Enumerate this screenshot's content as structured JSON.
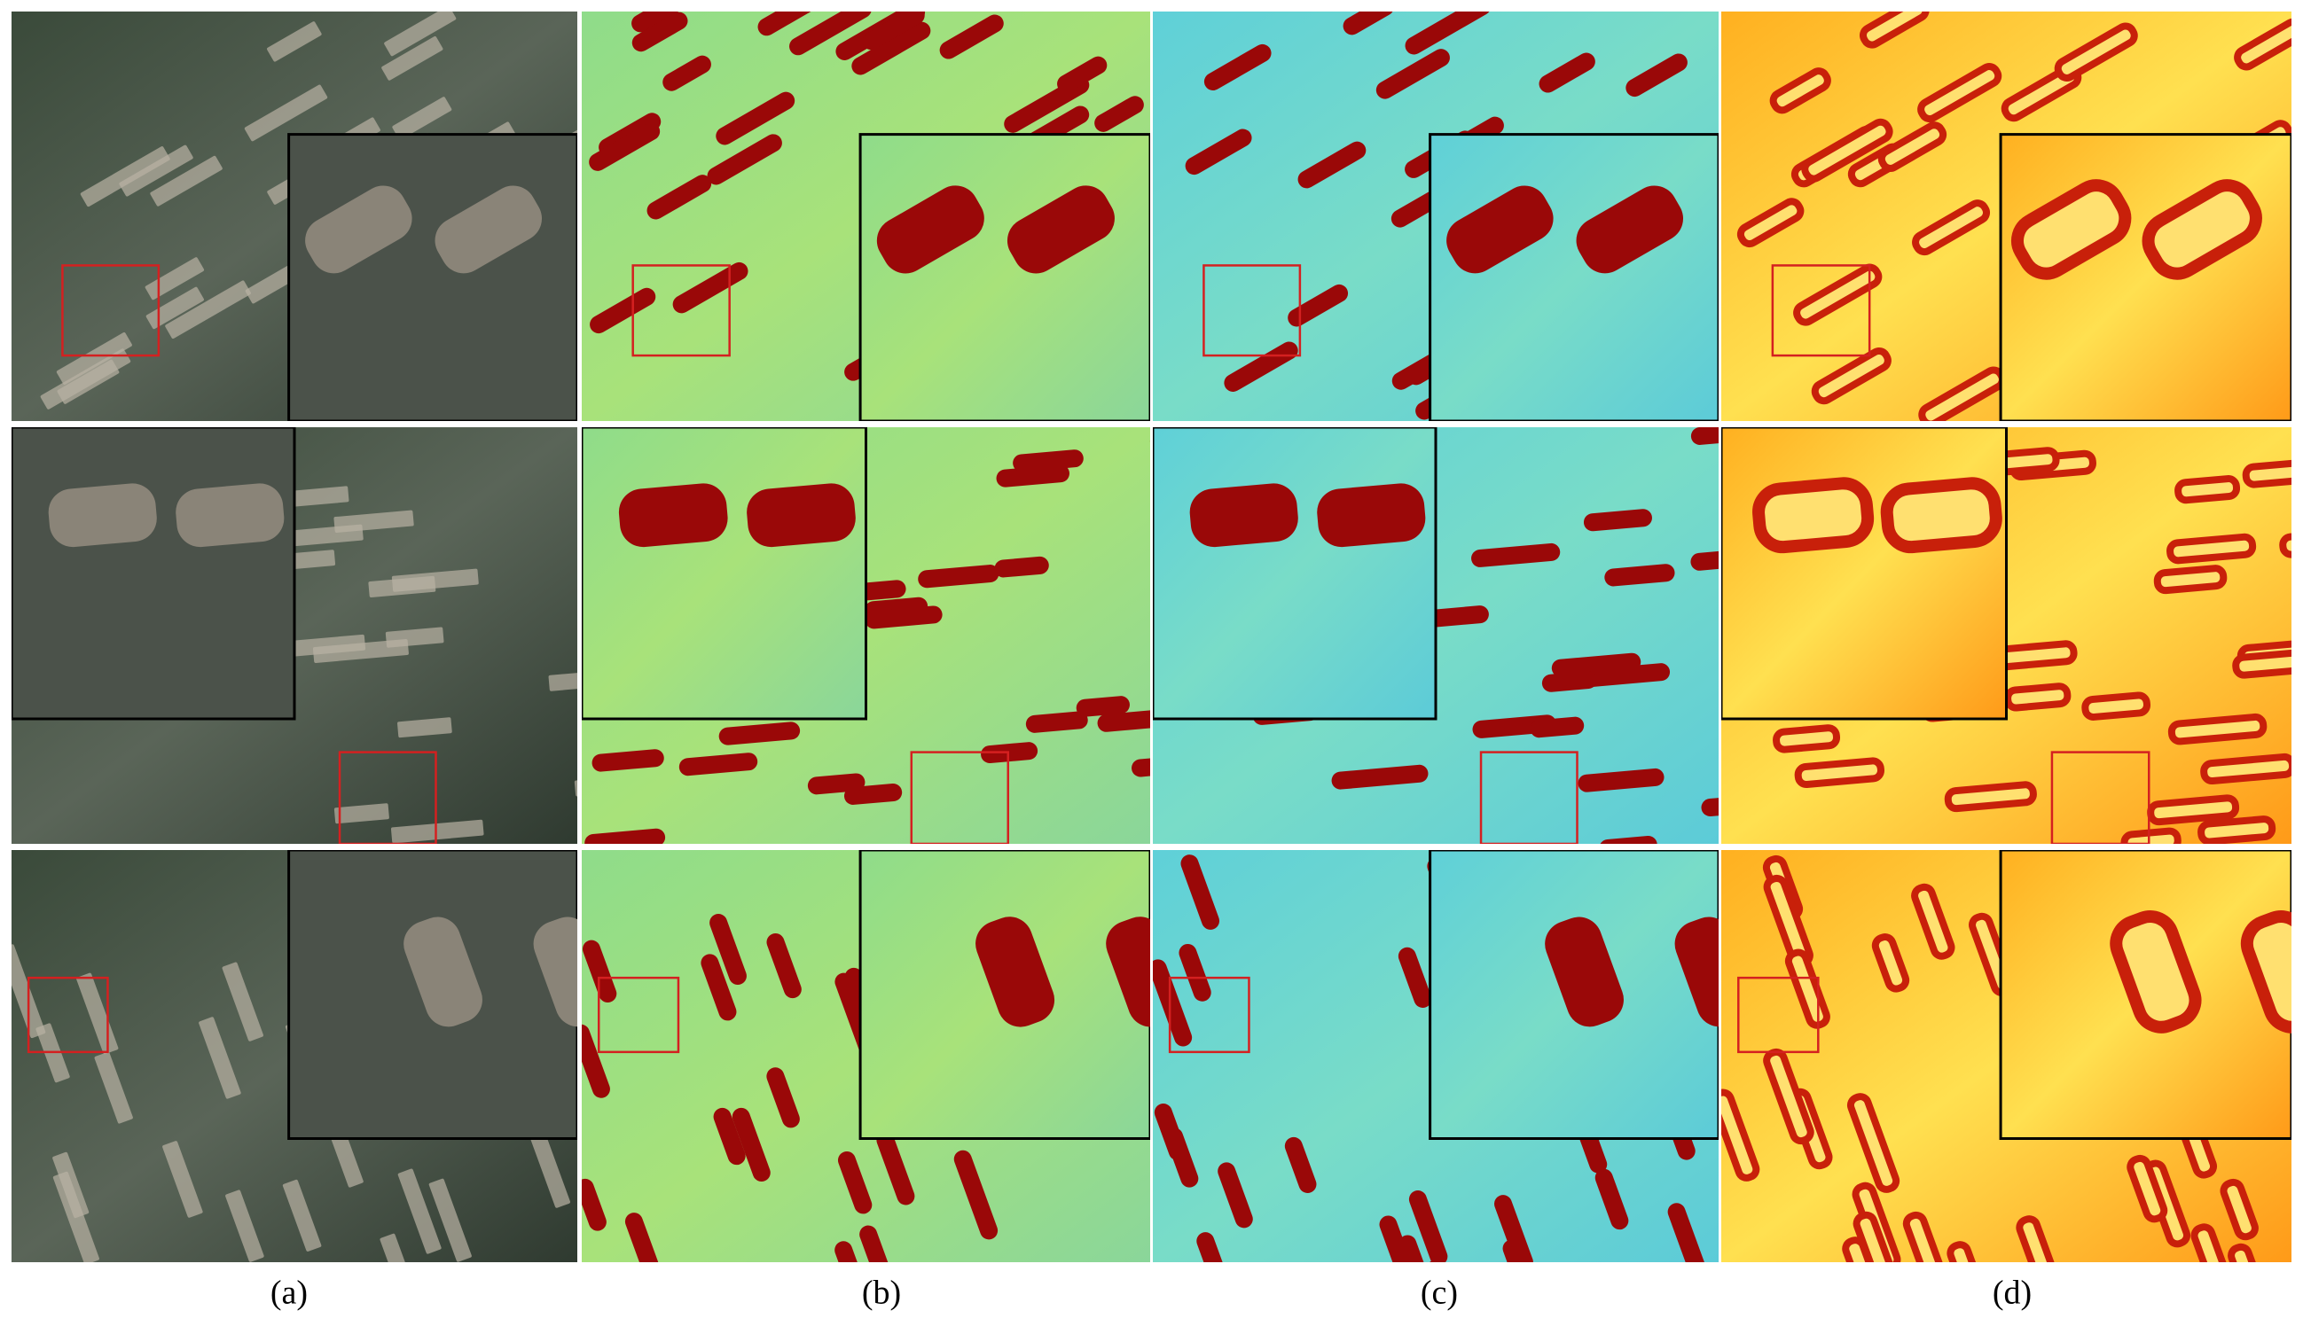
{
  "figure": {
    "panel_labels": [
      "(a)",
      "(b)",
      "(c)",
      "(d)"
    ]
  }
}
